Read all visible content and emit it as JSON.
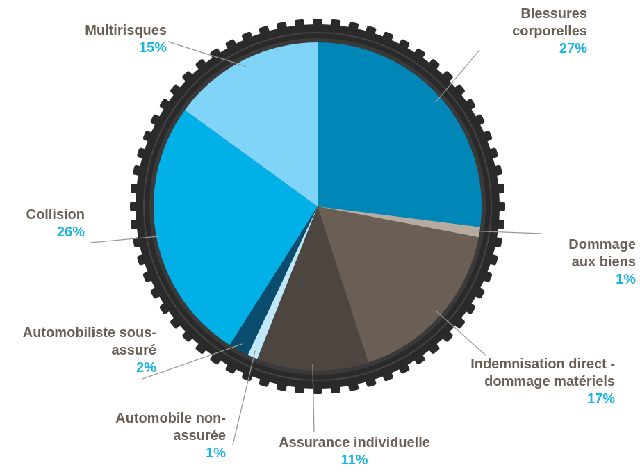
{
  "chart_data": {
    "type": "pie",
    "categories": [
      "Blessures corporelles",
      "Dommage aux biens",
      "Indemnisation direct - dommage matériels",
      "Assurance individuelle",
      "Automobile non-assurée",
      "Automobiliste sous-assuré",
      "Collision",
      "Multirisques"
    ],
    "values": [
      27,
      1,
      17,
      11,
      1,
      2,
      26,
      15
    ],
    "value_labels": [
      "27%",
      "1%",
      "17%",
      "11%",
      "1%",
      "2%",
      "26%",
      "15%"
    ],
    "colors": [
      "#0087b8",
      "#b5aba1",
      "#6b5f55",
      "#4d4540",
      "#bfe8fb",
      "#0b4d6e",
      "#00b0e6",
      "#80d4f8"
    ]
  }
}
